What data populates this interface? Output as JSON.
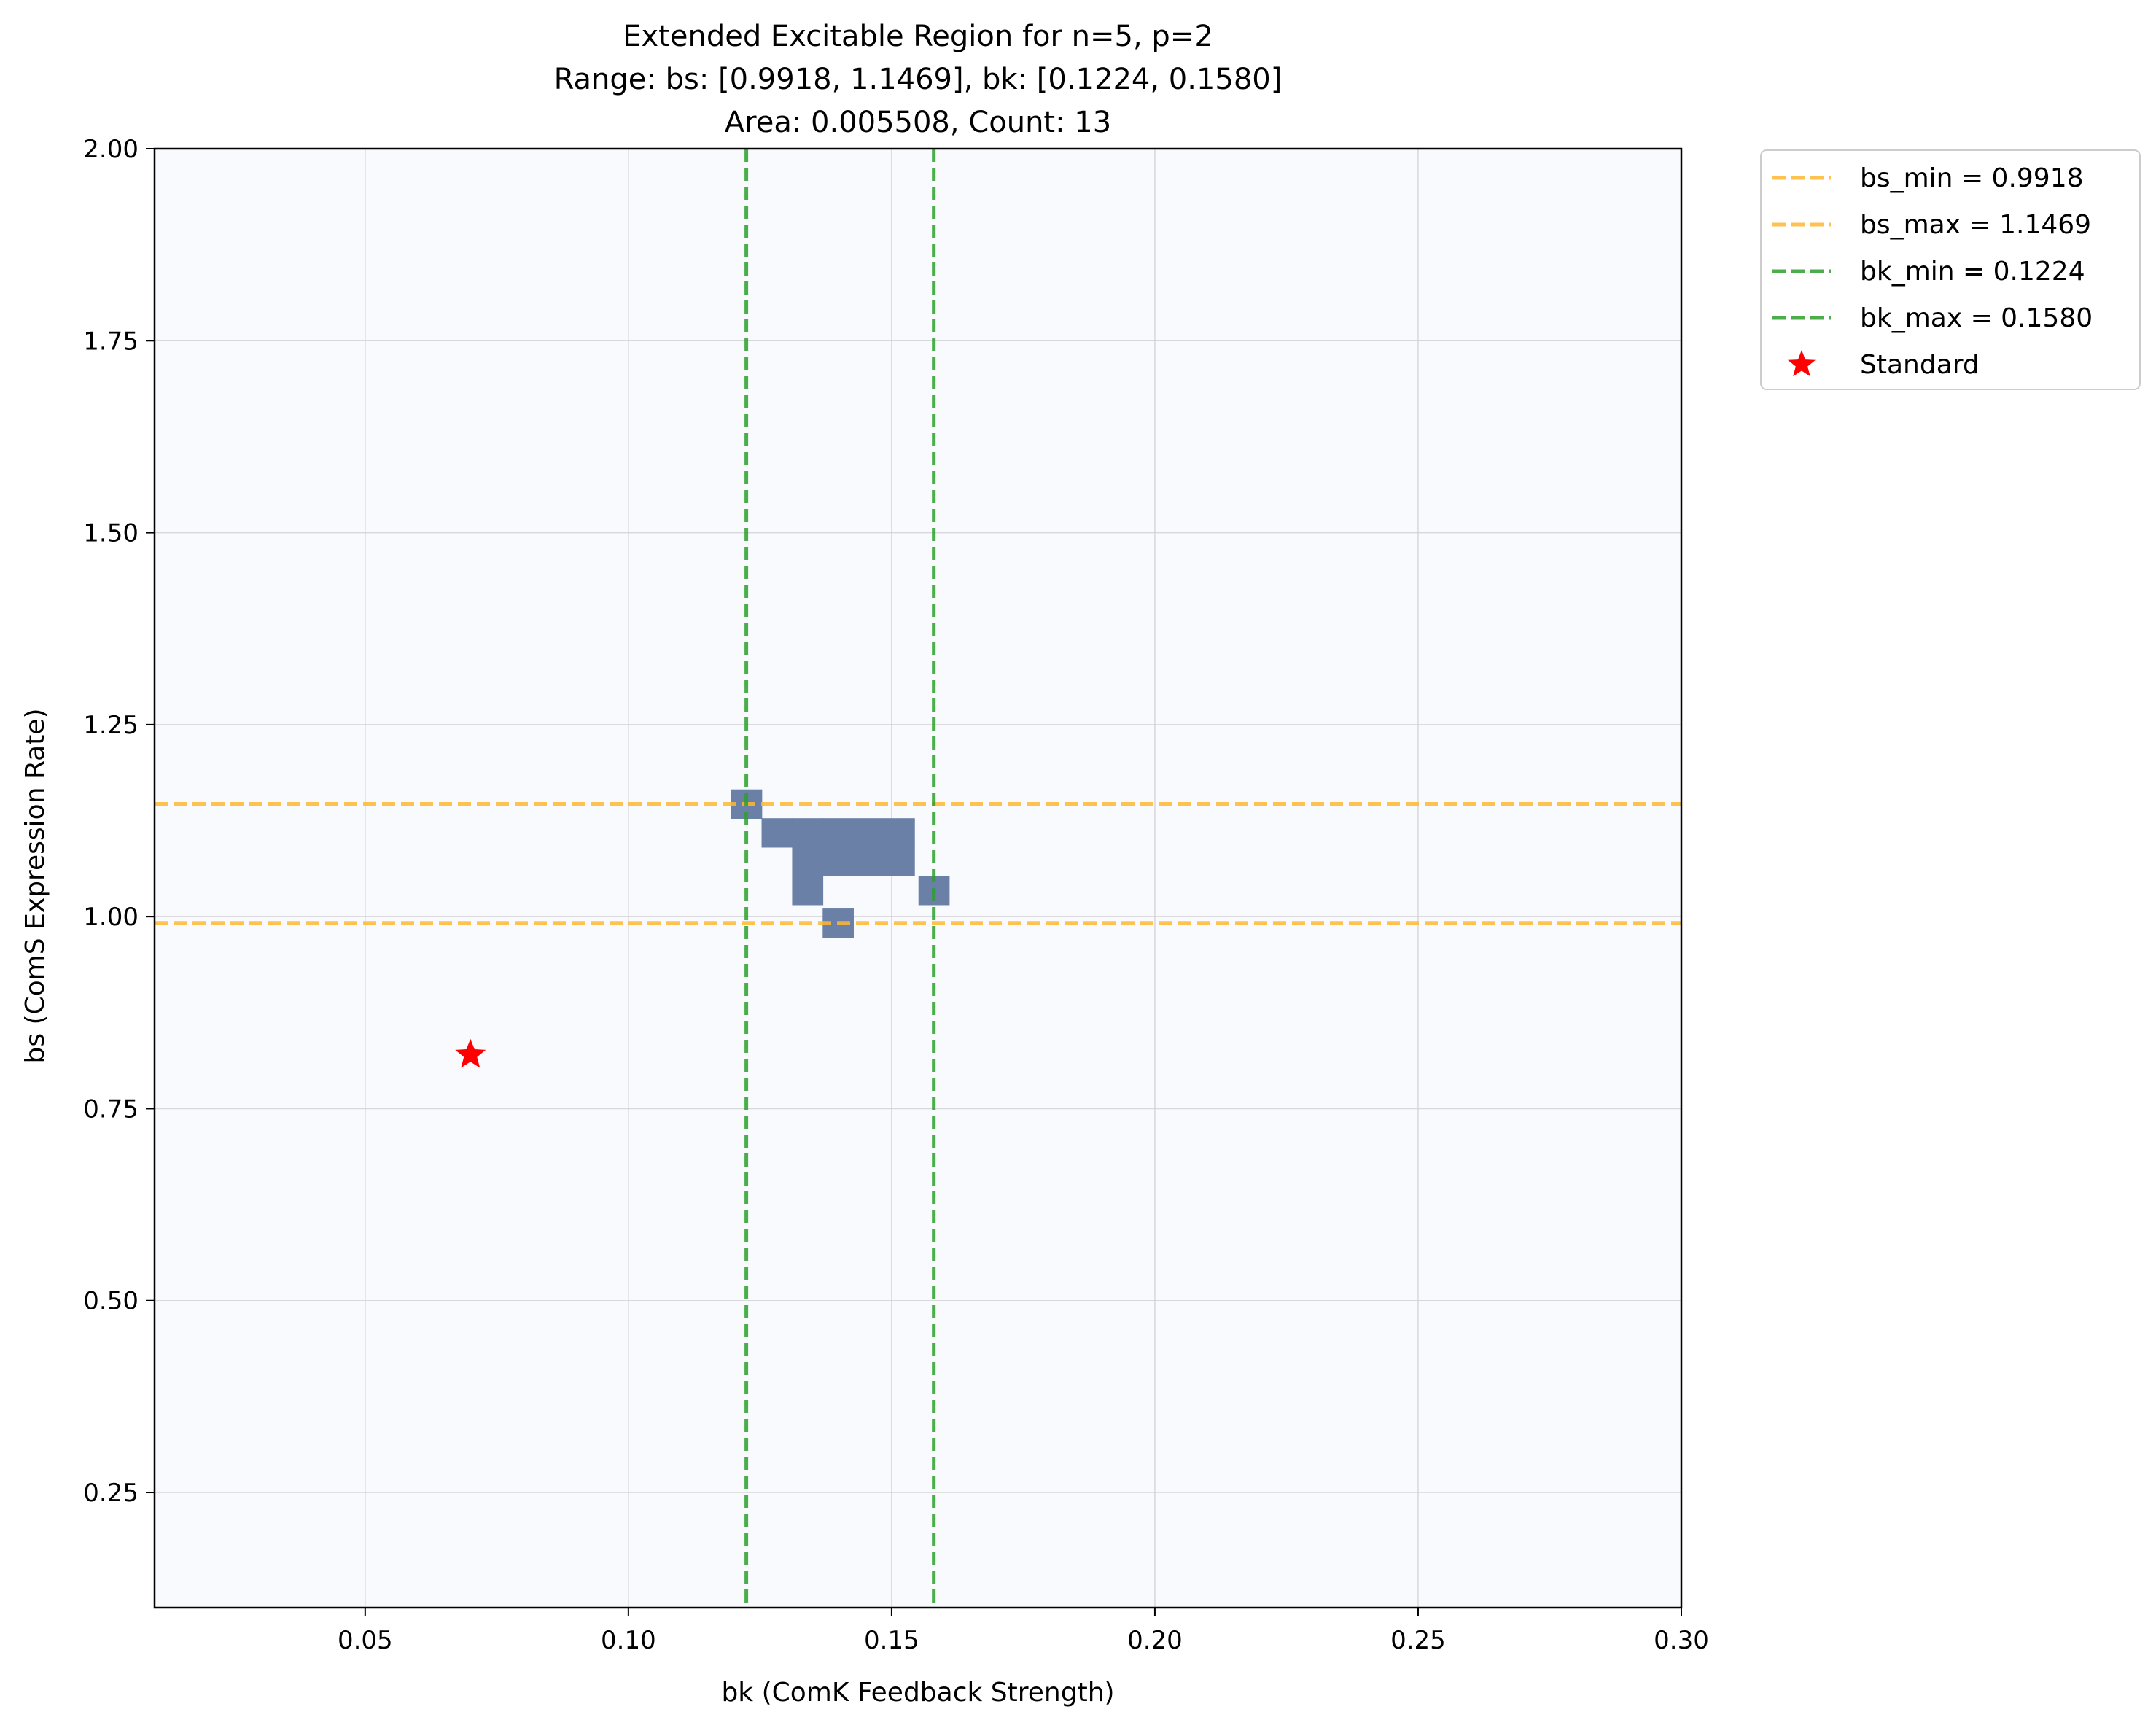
{
  "chart_data": {
    "type": "heatmap",
    "title_lines": [
      "Extended Excitable Region for n=5, p=2",
      "Range: bs: [0.9918, 1.1469], bk: [0.1224, 0.1580]",
      "Area: 0.005508, Count: 13"
    ],
    "xlabel": "bk (ComK Feedback Strength)",
    "ylabel": "bs (ComS Expression Rate)",
    "xlim": [
      0.01,
      0.3
    ],
    "ylim": [
      0.1,
      2.0
    ],
    "xticks": [
      0.05,
      0.1,
      0.15,
      0.2,
      0.25,
      0.3
    ],
    "xtick_labels": [
      "0.05",
      "0.10",
      "0.15",
      "0.20",
      "0.25",
      "0.30"
    ],
    "yticks": [
      0.25,
      0.5,
      0.75,
      1.0,
      1.25,
      1.5,
      1.75,
      2.0
    ],
    "ytick_labels": [
      "0.25",
      "0.50",
      "0.75",
      "1.00",
      "1.25",
      "1.50",
      "1.75",
      "2.00"
    ],
    "grid": true,
    "background_color": "#f8fafe",
    "cell_color": "#6a80a6",
    "cell_size": {
      "bk": 0.0058,
      "bs": 0.0375
    },
    "cells": [
      {
        "bk": 0.1224,
        "bs": 1.1469
      },
      {
        "bk": 0.1282,
        "bs": 1.1094
      },
      {
        "bk": 0.134,
        "bs": 1.1094
      },
      {
        "bk": 0.1398,
        "bs": 1.1094
      },
      {
        "bk": 0.1456,
        "bs": 1.1094
      },
      {
        "bk": 0.1514,
        "bs": 1.1094
      },
      {
        "bk": 0.134,
        "bs": 1.0719
      },
      {
        "bk": 0.1398,
        "bs": 1.0719
      },
      {
        "bk": 0.1456,
        "bs": 1.0719
      },
      {
        "bk": 0.1514,
        "bs": 1.0719
      },
      {
        "bk": 0.134,
        "bs": 1.0344
      },
      {
        "bk": 0.158,
        "bs": 1.0344
      },
      {
        "bk": 0.1398,
        "bs": 0.9918
      }
    ],
    "hlines": [
      {
        "label": "bs_min = 0.9918",
        "value": 0.9918,
        "color": "#ffb733"
      },
      {
        "label": "bs_max = 1.1469",
        "value": 1.1469,
        "color": "#ffb733"
      }
    ],
    "vlines": [
      {
        "label": "bk_min = 0.1224",
        "value": 0.1224,
        "color": "#2ca02c"
      },
      {
        "label": "bk_max = 0.1580",
        "value": 0.158,
        "color": "#2ca02c"
      }
    ],
    "marker": {
      "label": "Standard",
      "bk": 0.07,
      "bs": 0.82,
      "color": "#ff0000",
      "shape": "star"
    },
    "legend_position": "outside-top-right"
  }
}
